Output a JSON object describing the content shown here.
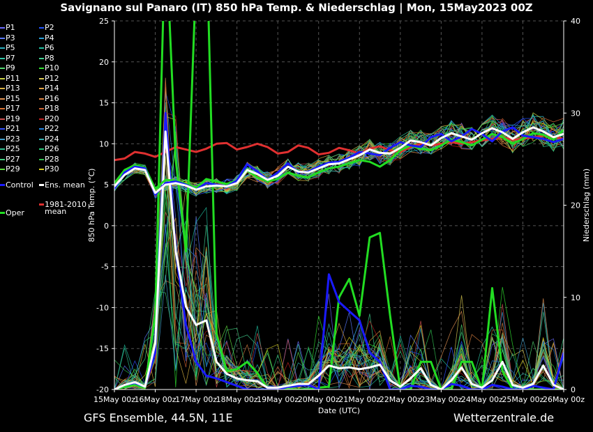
{
  "title": "Savignano sul Panaro  (IT)  850 hPa Temp. & Niederschlag | Mon, 15May2023 00Z",
  "footer_left": "GFS Ensemble, 44.5N, 11E",
  "footer_right": "Wetterzentrale.de",
  "colors": {
    "background": "#000000",
    "grid": "#555555",
    "axis": "#ffffff",
    "control": "#1a1aff",
    "ens_mean": "#ffffff",
    "climate_mean": "#e03030",
    "oper": "#22dd22"
  },
  "legend": {
    "members": [
      {
        "label": "P1",
        "color": "#6a6aff"
      },
      {
        "label": "P2",
        "color": "#2255ff"
      },
      {
        "label": "P3",
        "color": "#5a7aff"
      },
      {
        "label": "P4",
        "color": "#2a9fd8"
      },
      {
        "label": "P5",
        "color": "#2ab0c0"
      },
      {
        "label": "P6",
        "color": "#20c0a0"
      },
      {
        "label": "P7",
        "color": "#30c8a8"
      },
      {
        "label": "P8",
        "color": "#40d090"
      },
      {
        "label": "P9",
        "color": "#50d870"
      },
      {
        "label": "P10",
        "color": "#30e030"
      },
      {
        "label": "P11",
        "color": "#c8d040"
      },
      {
        "label": "P12",
        "color": "#d8c850"
      },
      {
        "label": "P13",
        "color": "#d8b040"
      },
      {
        "label": "P14",
        "color": "#e0a040"
      },
      {
        "label": "P15",
        "color": "#e09050"
      },
      {
        "label": "P16",
        "color": "#d88040"
      },
      {
        "label": "P17",
        "color": "#d87030"
      },
      {
        "label": "P18",
        "color": "#c86030"
      },
      {
        "label": "P19",
        "color": "#d05050"
      },
      {
        "label": "P20",
        "color": "#c02020"
      },
      {
        "label": "P21",
        "color": "#3050ff"
      },
      {
        "label": "P22",
        "color": "#2080e0"
      },
      {
        "label": "P23",
        "color": "#40a0d0"
      },
      {
        "label": "P24",
        "color": "#30b0b0"
      },
      {
        "label": "P25",
        "color": "#30c090"
      },
      {
        "label": "P26",
        "color": "#28c878"
      },
      {
        "label": "P27",
        "color": "#40d080"
      },
      {
        "label": "P28",
        "color": "#30c050"
      },
      {
        "label": "P29",
        "color": "#60e040"
      },
      {
        "label": "P30",
        "color": "#d8d020"
      }
    ],
    "control": "Control",
    "ens_mean": "Ens. mean",
    "climate_mean_line1": "1981-2010",
    "climate_mean_line2": "mean",
    "oper": "Oper"
  },
  "chart_data": {
    "type": "line",
    "xlabel": "Date (UTC)",
    "ylabel": "850 hPa Temp. (°C)",
    "y2label": "Niederschlag (mm)",
    "ylim": [
      -20,
      25
    ],
    "yticks": [
      "25",
      "20",
      "15",
      "10",
      "5",
      "0",
      "-5",
      "-10",
      "-15",
      "-20"
    ],
    "y2lim": [
      0,
      40
    ],
    "y2ticks": [
      "40",
      "30",
      "20",
      "10",
      "0"
    ],
    "x_hours": [
      0,
      264
    ],
    "xticks": [
      "15May 00z",
      "16May 00z",
      "17May 00z",
      "18May 00z",
      "19May 00z",
      "20May 00z",
      "21May 00z",
      "22May 00z",
      "23May 00z",
      "24May 00z",
      "25May 00z",
      "26May 00z"
    ],
    "grid": true,
    "x": [
      0,
      6,
      12,
      18,
      24,
      30,
      36,
      42,
      48,
      54,
      60,
      66,
      72,
      78,
      84,
      90,
      96,
      102,
      108,
      114,
      120,
      126,
      132,
      138,
      144,
      150,
      156,
      162,
      168,
      174,
      180,
      186,
      192,
      198,
      204,
      210,
      216,
      222,
      228,
      234,
      240,
      246,
      252,
      258,
      264
    ],
    "temperature": {
      "control": [
        4.5,
        6.5,
        7.2,
        7.0,
        3.8,
        5.2,
        5.4,
        5.0,
        4.4,
        5.2,
        5.0,
        4.8,
        5.5,
        7.5,
        6.6,
        5.6,
        6.5,
        7.6,
        6.5,
        6.6,
        7.2,
        7.7,
        7.8,
        8.3,
        9.0,
        8.8,
        8.6,
        9.5,
        10.2,
        9.8,
        9.6,
        10.8,
        11.2,
        10.3,
        10.9,
        11.8,
        11.2,
        10.3,
        11.5,
        12.0,
        11.0,
        10.8,
        10.6,
        10.2,
        10.6
      ],
      "ens_mean": [
        4.8,
        6.2,
        7.0,
        6.8,
        4.0,
        5.0,
        5.2,
        4.9,
        4.4,
        4.8,
        4.9,
        4.8,
        5.2,
        6.8,
        6.3,
        5.6,
        6.1,
        7.2,
        6.6,
        6.5,
        7.0,
        7.5,
        7.6,
        8.1,
        8.6,
        9.3,
        8.9,
        8.8,
        9.5,
        10.4,
        10.2,
        9.8,
        10.7,
        11.3,
        10.9,
        10.5,
        11.3,
        11.9,
        11.4,
        10.6,
        11.4,
        12.0,
        11.5,
        10.8,
        11.2
      ],
      "climate_mean": [
        8.0,
        8.2,
        9.0,
        8.8,
        8.4,
        9.0,
        9.6,
        9.3,
        9.0,
        9.4,
        10.0,
        10.1,
        9.3,
        9.6,
        10.0,
        9.6,
        8.8,
        9.0,
        9.8,
        9.5,
        8.7,
        8.9,
        9.5,
        9.2,
        8.8,
        9.4,
        9.7,
        9.2,
        9.0,
        9.6,
        10.0,
        9.8,
        10.0,
        10.2,
        10.0,
        10.2,
        10.4,
        10.6,
        10.8,
        10.5,
        10.6,
        10.8,
        11.0,
        10.8,
        10.6
      ],
      "oper": [
        5.2,
        6.8,
        7.4,
        7.1,
        4.5,
        5.6,
        5.5,
        5.1,
        4.6,
        5.7,
        5.4,
        5.1,
        5.5,
        6.8,
        5.9,
        5.4,
        5.7,
        6.5,
        6.1,
        5.9,
        6.5,
        7.0,
        7.2,
        7.6,
        8.0,
        7.8,
        7.2,
        8.0,
        9.2,
        9.8,
        9.4,
        9.2,
        9.8,
        10.5,
        10.2,
        9.8,
        10.5,
        11.2,
        10.8,
        10.0,
        10.6,
        11.3,
        11.1,
        10.5,
        11.7
      ]
    },
    "precipitation_mm": {
      "control": [
        0.0,
        0.5,
        0.7,
        0.3,
        4.0,
        30.0,
        15.0,
        7.0,
        3.0,
        1.5,
        1.2,
        0.8,
        0.4,
        0.0,
        0.0,
        0.0,
        0.0,
        0.3,
        0.4,
        0.5,
        0.0,
        12.5,
        9.5,
        8.5,
        7.5,
        4.0,
        3.0,
        0.0,
        0.0,
        0.4,
        0.3,
        0.0,
        0.0,
        0.6,
        0.4,
        0.0,
        0.0,
        0.5,
        0.3,
        0.0,
        0.0,
        0.4,
        0.2,
        0.0,
        4.0
      ],
      "ens_mean": [
        0.0,
        0.5,
        0.8,
        0.3,
        5.0,
        28.0,
        15.0,
        9.0,
        7.0,
        7.5,
        3.0,
        1.7,
        1.2,
        1.0,
        0.9,
        0.2,
        0.2,
        0.4,
        0.6,
        0.6,
        1.5,
        2.6,
        2.3,
        2.4,
        2.2,
        2.4,
        2.7,
        1.0,
        0.3,
        1.2,
        2.3,
        0.5,
        0.0,
        1.0,
        2.4,
        0.6,
        0.2,
        1.0,
        3.0,
        0.5,
        0.2,
        0.6,
        2.6,
        0.5,
        0.0
      ],
      "oper": [
        0.0,
        0.3,
        0.5,
        0.2,
        8.0,
        50.0,
        25.0,
        15.0,
        45.0,
        50.0,
        6.0,
        2.0,
        2.2,
        3.0,
        1.8,
        0.1,
        0.0,
        0.0,
        0.0,
        0.0,
        0.2,
        0.3,
        10.0,
        12.0,
        8.0,
        16.5,
        17.0,
        8.0,
        0.0,
        0.0,
        3.0,
        3.0,
        0.0,
        0.0,
        3.0,
        3.0,
        0.0,
        11.0,
        2.0,
        0.0,
        0.0,
        0.0,
        0.0,
        0.0,
        0.0
      ]
    },
    "members_summary": {
      "temperature_spread_note_free": true
    }
  }
}
